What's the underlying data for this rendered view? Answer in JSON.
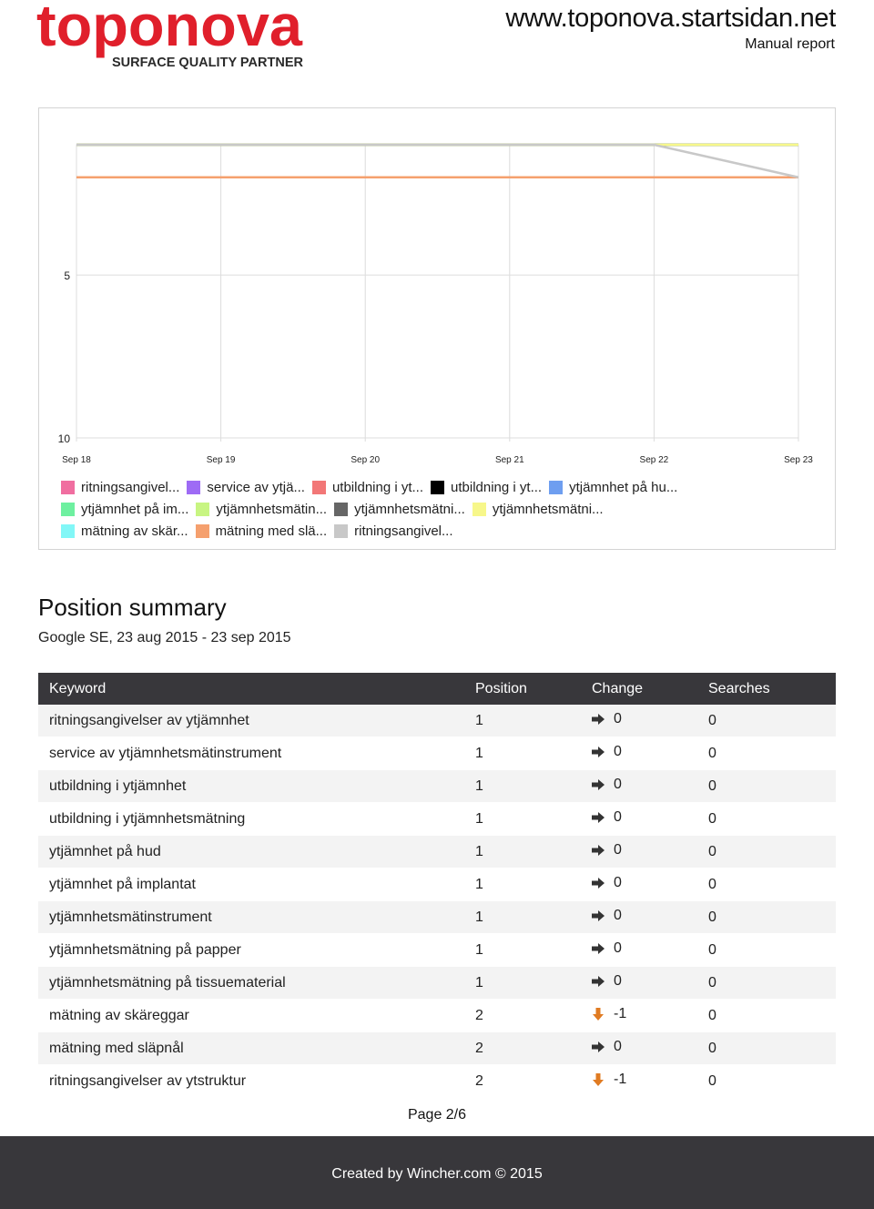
{
  "header": {
    "logo_word": "toponova",
    "logo_tagline": "SURFACE QUALITY PARTNER",
    "site_url": "www.toponova.startsidan.net",
    "report_type": "Manual report"
  },
  "chart_data": {
    "type": "line",
    "x": [
      "Sep 18",
      "Sep 19",
      "Sep 20",
      "Sep 21",
      "Sep 22",
      "Sep 23"
    ],
    "y_ticks": [
      "5",
      "10"
    ],
    "ylim": [
      1,
      10
    ],
    "y_inverted": true,
    "grid": true,
    "legend": "bottom",
    "series": [
      {
        "name": "ritningsangivel...",
        "color": "#f06ea0",
        "values": [
          1,
          1,
          1,
          1,
          1,
          1
        ]
      },
      {
        "name": "service av ytjä...",
        "color": "#9e6bf5",
        "values": [
          1,
          1,
          1,
          1,
          1,
          1
        ]
      },
      {
        "name": "utbildning i yt...",
        "color": "#f27777",
        "values": [
          1,
          1,
          1,
          1,
          1,
          1
        ]
      },
      {
        "name": "utbildning i yt...",
        "color": "#000000",
        "values": [
          1,
          1,
          1,
          1,
          1,
          1
        ]
      },
      {
        "name": "ytjämnhet på hu...",
        "color": "#6e9ef0",
        "values": [
          1,
          1,
          1,
          1,
          1,
          1
        ]
      },
      {
        "name": "ytjämnhet på im...",
        "color": "#6ef0a0",
        "values": [
          1,
          1,
          1,
          1,
          1,
          1
        ]
      },
      {
        "name": "ytjämnhetsmätin...",
        "color": "#c8f582",
        "values": [
          1,
          1,
          1,
          1,
          1,
          1
        ]
      },
      {
        "name": "ytjämnhetsmätni...",
        "color": "#666666",
        "values": [
          1,
          1,
          1,
          1,
          1,
          1
        ]
      },
      {
        "name": "ytjämnhetsmätni...",
        "color": "#f7f78a",
        "values": [
          1,
          1,
          1,
          1,
          1,
          1
        ]
      },
      {
        "name": "mätning av skär...",
        "color": "#82f7f7",
        "values": [
          2,
          2,
          2,
          2,
          2,
          2
        ]
      },
      {
        "name": "mätning med slä...",
        "color": "#f5a06e",
        "values": [
          2,
          2,
          2,
          2,
          2,
          2
        ]
      },
      {
        "name": "ritningsangivel...",
        "color": "#c8c8c8",
        "values": [
          1,
          1,
          1,
          1,
          1,
          2
        ]
      }
    ]
  },
  "summary": {
    "title": "Position summary",
    "subtitle": "Google SE, 23 aug 2015 - 23 sep 2015",
    "columns": [
      "Keyword",
      "Position",
      "Change",
      "Searches"
    ],
    "rows": [
      {
        "keyword": "ritningsangivelser av ytjämnhet",
        "position": "1",
        "change": "0",
        "dir": "same",
        "searches": "0"
      },
      {
        "keyword": "service av ytjämnhetsmätinstrument",
        "position": "1",
        "change": "0",
        "dir": "same",
        "searches": "0"
      },
      {
        "keyword": "utbildning i ytjämnhet",
        "position": "1",
        "change": "0",
        "dir": "same",
        "searches": "0"
      },
      {
        "keyword": "utbildning i ytjämnhetsmätning",
        "position": "1",
        "change": "0",
        "dir": "same",
        "searches": "0"
      },
      {
        "keyword": "ytjämnhet på hud",
        "position": "1",
        "change": "0",
        "dir": "same",
        "searches": "0"
      },
      {
        "keyword": "ytjämnhet på implantat",
        "position": "1",
        "change": "0",
        "dir": "same",
        "searches": "0"
      },
      {
        "keyword": "ytjämnhetsmätinstrument",
        "position": "1",
        "change": "0",
        "dir": "same",
        "searches": "0"
      },
      {
        "keyword": "ytjämnhetsmätning på papper",
        "position": "1",
        "change": "0",
        "dir": "same",
        "searches": "0"
      },
      {
        "keyword": "ytjämnhetsmätning på tissuematerial",
        "position": "1",
        "change": "0",
        "dir": "same",
        "searches": "0"
      },
      {
        "keyword": "mätning av skäreggar",
        "position": "2",
        "change": "-1",
        "dir": "down",
        "searches": "0"
      },
      {
        "keyword": "mätning med släpnål",
        "position": "2",
        "change": "0",
        "dir": "same",
        "searches": "0"
      },
      {
        "keyword": "ritningsangivelser av ytstruktur",
        "position": "2",
        "change": "-1",
        "dir": "down",
        "searches": "0"
      }
    ]
  },
  "footer": {
    "page": "Page 2/6",
    "credit": "Created by Wincher.com © 2015"
  },
  "colors": {
    "brand_red": "#e01f2b",
    "header_dark": "#38373b",
    "arrow_same": "#333333",
    "arrow_down": "#e07b22"
  },
  "icons": {
    "same": "arrow-right-icon",
    "down": "arrow-down-icon"
  }
}
